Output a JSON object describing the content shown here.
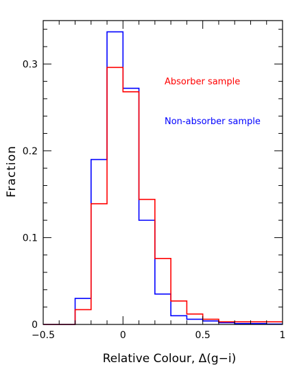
{
  "chart_data": {
    "type": "histogram",
    "xlabel": "Relative Colour, Δ(g−i)",
    "ylabel": "Fraction",
    "xlim": [
      -0.5,
      1.0
    ],
    "ylim": [
      0,
      0.35
    ],
    "x_ticks": [
      -0.5,
      0,
      0.5,
      1
    ],
    "x_tick_labels": [
      "−0.5",
      "0",
      "0.5",
      "1"
    ],
    "y_ticks": [
      0,
      0.1,
      0.2,
      0.3
    ],
    "y_tick_labels": [
      "0",
      "0.1",
      "0.2",
      "0.3"
    ],
    "bin_edges": [
      -0.3,
      -0.2,
      -0.1,
      0.0,
      0.1,
      0.2,
      0.3,
      0.4,
      0.5,
      0.6,
      0.7,
      0.8,
      0.9,
      1.0
    ],
    "legend_placement": "top-right",
    "series": [
      {
        "name": "Absorber sample",
        "color": "#ff0000",
        "values": [
          0.017,
          0.139,
          0.296,
          0.268,
          0.144,
          0.076,
          0.027,
          0.012,
          0.006,
          0.003,
          0.003,
          0.003,
          0.003
        ]
      },
      {
        "name": "Non-absorber sample",
        "color": "#0000ff",
        "values": [
          0.03,
          0.19,
          0.337,
          0.272,
          0.12,
          0.035,
          0.01,
          0.006,
          0.004,
          0.002,
          0.001,
          0.001,
          0.0005
        ]
      }
    ]
  }
}
